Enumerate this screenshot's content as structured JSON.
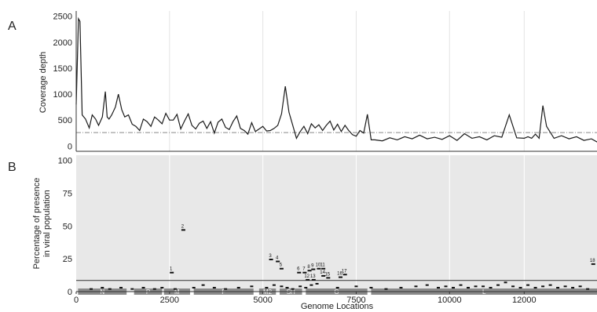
{
  "panel_a": {
    "letter": "A",
    "ylabel": "Coverage depth",
    "yticks": [
      "0",
      "500",
      "1000",
      "1500",
      "2000",
      "2500"
    ]
  },
  "panel_b": {
    "letter": "B",
    "ylabel_line1": "Percentage of presence",
    "ylabel_line2": "in viral population",
    "yticks": [
      "0",
      "25",
      "50",
      "75",
      "100"
    ]
  },
  "xaxis": {
    "label": "Genome Locations",
    "ticks": [
      "0",
      "2500",
      "5000",
      "7500",
      "10000",
      "12000"
    ]
  },
  "colors": {
    "panel_b_background": "#e8e8e8",
    "gene_bar": "#8a8a8a",
    "line": "#1a1a1a",
    "gridline": "#d9d9d9"
  },
  "chart_data": [
    {
      "type": "line",
      "panel": "A",
      "title": "",
      "xlabel": "",
      "ylabel": "Coverage depth",
      "xlim": [
        0,
        14000
      ],
      "ylim": [
        -100,
        2600
      ],
      "threshold": 260,
      "x": [
        0,
        60,
        100,
        160,
        250,
        350,
        430,
        520,
        600,
        700,
        780,
        830,
        880,
        950,
        1050,
        1130,
        1220,
        1300,
        1400,
        1500,
        1600,
        1700,
        1800,
        1900,
        2000,
        2100,
        2200,
        2300,
        2400,
        2500,
        2600,
        2700,
        2800,
        2900,
        3000,
        3100,
        3200,
        3300,
        3400,
        3500,
        3600,
        3700,
        3800,
        3900,
        4000,
        4100,
        4200,
        4300,
        4400,
        4500,
        4600,
        4700,
        4800,
        4900,
        5000,
        5100,
        5200,
        5300,
        5400,
        5500,
        5600,
        5700,
        5800,
        5900,
        6000,
        6100,
        6200,
        6300,
        6400,
        6500,
        6600,
        6700,
        6800,
        6900,
        7000,
        7100,
        7200,
        7300,
        7400,
        7500,
        7600,
        7700,
        7800,
        7900,
        8000,
        8200,
        8400,
        8600,
        8800,
        9000,
        9200,
        9400,
        9600,
        9800,
        10000,
        10200,
        10400,
        10600,
        10800,
        11000,
        11200,
        11400,
        11600,
        11800,
        12000,
        12100,
        12200,
        12300,
        12400,
        12500,
        12600,
        12800,
        13000,
        13200,
        13400,
        13600,
        13800,
        14000
      ],
      "y": [
        800,
        2450,
        2400,
        600,
        520,
        350,
        600,
        520,
        400,
        560,
        1050,
        560,
        520,
        600,
        750,
        1000,
        700,
        560,
        600,
        420,
        380,
        300,
        520,
        470,
        380,
        560,
        500,
        430,
        630,
        500,
        500,
        610,
        330,
        480,
        620,
        400,
        330,
        440,
        480,
        340,
        470,
        250,
        460,
        520,
        360,
        320,
        470,
        580,
        340,
        300,
        230,
        450,
        280,
        330,
        380,
        290,
        300,
        340,
        400,
        620,
        1150,
        650,
        400,
        150,
        280,
        380,
        240,
        430,
        350,
        410,
        300,
        400,
        480,
        310,
        420,
        280,
        400,
        300,
        220,
        190,
        300,
        250,
        610,
        120,
        120,
        100,
        160,
        120,
        180,
        140,
        210,
        140,
        170,
        130,
        200,
        110,
        240,
        150,
        180,
        120,
        200,
        170,
        600,
        160,
        150,
        180,
        150,
        230,
        150,
        780,
        380,
        150,
        200,
        140,
        180,
        110,
        140,
        60
      ]
    },
    {
      "type": "scatter",
      "panel": "B",
      "title": "",
      "xlabel": "Genome Locations",
      "ylabel": "Percentage of presence in viral population",
      "xlim": [
        0,
        13950
      ],
      "ylim": [
        0,
        104
      ],
      "threshold": 8.5,
      "points": [
        {
          "label": "1",
          "x": 2560,
          "y": 14.5
        },
        {
          "label": "2",
          "x": 2870,
          "y": 47
        },
        {
          "label": "3",
          "x": 5220,
          "y": 24.5
        },
        {
          "label": "4",
          "x": 5400,
          "y": 23
        },
        {
          "label": "5",
          "x": 5500,
          "y": 17.5
        },
        {
          "label": "6",
          "x": 5970,
          "y": 14.5
        },
        {
          "label": "7",
          "x": 6120,
          "y": 14.5
        },
        {
          "label": "8",
          "x": 6250,
          "y": 16
        },
        {
          "label": "9",
          "x": 6350,
          "y": 17
        },
        {
          "label": "10",
          "x": 6500,
          "y": 17.5
        },
        {
          "label": "11",
          "x": 6620,
          "y": 17.5
        },
        {
          "label": "12",
          "x": 6200,
          "y": 9
        },
        {
          "label": "13",
          "x": 6360,
          "y": 9
        },
        {
          "label": "14",
          "x": 6620,
          "y": 12
        },
        {
          "label": "15",
          "x": 6750,
          "y": 10.5
        },
        {
          "label": "16",
          "x": 7080,
          "y": 11
        },
        {
          "label": "17",
          "x": 7200,
          "y": 13
        },
        {
          "label": "18",
          "x": 13850,
          "y": 21
        }
      ],
      "low_points_x": [
        400,
        700,
        900,
        1200,
        1500,
        1800,
        2100,
        2300,
        2650,
        3150,
        3400,
        3700,
        4000,
        4350,
        4700,
        5100,
        5300,
        5500,
        5650,
        5800,
        6000,
        6150,
        6300,
        6450,
        7000,
        7500,
        7900,
        8300,
        8700,
        9100,
        9400,
        9700,
        9900,
        10100,
        10300,
        10500,
        10700,
        10900,
        11100,
        11300,
        11500,
        11700,
        11900,
        12100,
        12300,
        12500,
        12700,
        12900,
        13100,
        13300,
        13500,
        13700
      ],
      "low_points_y": [
        2,
        3,
        2,
        3,
        2,
        3,
        2,
        3,
        2,
        3,
        5,
        3,
        2,
        3,
        4,
        3,
        5,
        4,
        3,
        2,
        4,
        3,
        5,
        6,
        3,
        4,
        3,
        2,
        3,
        4,
        5,
        3,
        4,
        3,
        5,
        3,
        4,
        4,
        3,
        5,
        7,
        4,
        3,
        5,
        3,
        4,
        5,
        3,
        4,
        3,
        4,
        2
      ],
      "genes": [
        {
          "name": "N",
          "start": 50,
          "end": 1350
        },
        {
          "name": "P",
          "start": 1550,
          "end": 2300
        },
        {
          "name": "M",
          "start": 2350,
          "end": 3050
        },
        {
          "name": "F",
          "start": 3150,
          "end": 4750
        },
        {
          "name": "M2",
          "start": 4900,
          "end": 5350
        },
        {
          "name": "SH",
          "start": 5450,
          "end": 6050
        },
        {
          "name": "G",
          "start": 6150,
          "end": 7800
        },
        {
          "name": "L",
          "start": 7900,
          "end": 13950
        }
      ]
    }
  ]
}
